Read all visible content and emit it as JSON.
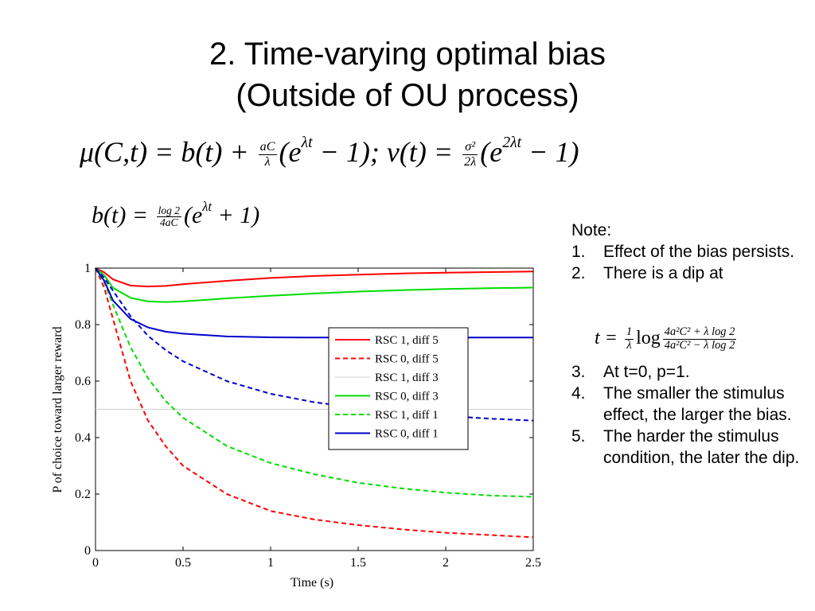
{
  "slide": {
    "title_line1": "2. Time-varying optimal bias",
    "title_line2": "(Outside of OU process)"
  },
  "equations": {
    "eq1_left": "μ(C,t) = b(t) + ",
    "eq1_frac_num": "aC",
    "eq1_frac_den": "λ",
    "eq1_mid": "(e",
    "eq1_exp1": "λt",
    "eq1_mid2": " − 1);    v(t) = ",
    "eq1_frac2_num": "σ²",
    "eq1_frac2_den": "2λ",
    "eq1_mid3": "(e",
    "eq1_exp2": "2λt",
    "eq1_end": " − 1)",
    "eq2_left": "b(t) = ",
    "eq2_frac_num": "log 2",
    "eq2_frac_den": "4aC",
    "eq2_mid": "(e",
    "eq2_exp": "λt",
    "eq2_end": " + 1)",
    "eq3_left": "t = ",
    "eq3_frac_num": "1",
    "eq3_frac_den": "λ",
    "eq3_log": "log",
    "eq3_frac2_num": "4a²C² + λ log 2",
    "eq3_frac2_den": "4a²C² − λ log 2"
  },
  "notes": {
    "heading": "Note:",
    "items": [
      {
        "num": "1.",
        "text": "Effect of the bias persists."
      },
      {
        "num": "2.",
        "text": "There is a dip at"
      },
      {
        "num": "3.",
        "text": "At t=0, p=1."
      },
      {
        "num": "4.",
        "text": "The smaller the stimulus effect, the larger the bias."
      },
      {
        "num": "5.",
        "text": "The harder the stimulus condition, the later the dip."
      }
    ]
  },
  "chart_data": {
    "type": "line",
    "xlabel": "Time (s)",
    "ylabel": "P of choice toward larger reward",
    "xlim": [
      0,
      2.5
    ],
    "ylim": [
      0,
      1
    ],
    "xticks": [
      "0",
      "0.5",
      "1",
      "1.5",
      "2",
      "2.5"
    ],
    "yticks": [
      "0",
      "0.2",
      "0.4",
      "0.6",
      "0.8",
      "1"
    ],
    "legend_position": "right",
    "reference_line_y": 0.5,
    "x": [
      0,
      0.05,
      0.1,
      0.2,
      0.3,
      0.4,
      0.5,
      0.75,
      1.0,
      1.25,
      1.5,
      1.75,
      2.0,
      2.25,
      2.5
    ],
    "series": [
      {
        "name": "RSC 1, diff 5",
        "color": "#ff0000",
        "dash": "solid",
        "values": [
          1.0,
          0.985,
          0.96,
          0.938,
          0.935,
          0.937,
          0.943,
          0.955,
          0.965,
          0.972,
          0.977,
          0.981,
          0.984,
          0.986,
          0.988
        ]
      },
      {
        "name": "RSC 0, diff 5",
        "color": "#ff0000",
        "dash": "dashed",
        "values": [
          1.0,
          0.93,
          0.82,
          0.6,
          0.46,
          0.37,
          0.3,
          0.2,
          0.14,
          0.11,
          0.09,
          0.075,
          0.063,
          0.055,
          0.047
        ]
      },
      {
        "name": "RSC 1, diff 3",
        "color": "#cfcfcf",
        "dash": "solid",
        "values": [
          0.5,
          0.5,
          0.5,
          0.5,
          0.5,
          0.5,
          0.5,
          0.5,
          0.5,
          0.5,
          0.5,
          0.5,
          0.5,
          0.5,
          0.5
        ]
      },
      {
        "name": "RSC 0, diff 3",
        "color": "#00dd00",
        "dash": "solid",
        "values": [
          1.0,
          0.975,
          0.93,
          0.895,
          0.882,
          0.88,
          0.882,
          0.893,
          0.902,
          0.91,
          0.917,
          0.922,
          0.926,
          0.929,
          0.931
        ]
      },
      {
        "name": "RSC 1, diff 1",
        "color": "#00dd00",
        "dash": "dashed",
        "values": [
          1.0,
          0.95,
          0.87,
          0.72,
          0.61,
          0.53,
          0.47,
          0.37,
          0.31,
          0.27,
          0.24,
          0.22,
          0.205,
          0.195,
          0.19
        ]
      },
      {
        "name": "RSC 0, diff 1",
        "color": "#0000cc",
        "dash": "solid",
        "values": [
          1.0,
          0.955,
          0.885,
          0.82,
          0.79,
          0.775,
          0.768,
          0.758,
          0.755,
          0.754,
          0.754,
          0.754,
          0.754,
          0.754,
          0.754
        ]
      },
      {
        "name": "",
        "color": "#0000cc",
        "dash": "dashed",
        "values": [
          1.0,
          0.965,
          0.92,
          0.83,
          0.76,
          0.71,
          0.67,
          0.6,
          0.555,
          0.525,
          0.505,
          0.49,
          0.477,
          0.467,
          0.46
        ]
      }
    ]
  }
}
